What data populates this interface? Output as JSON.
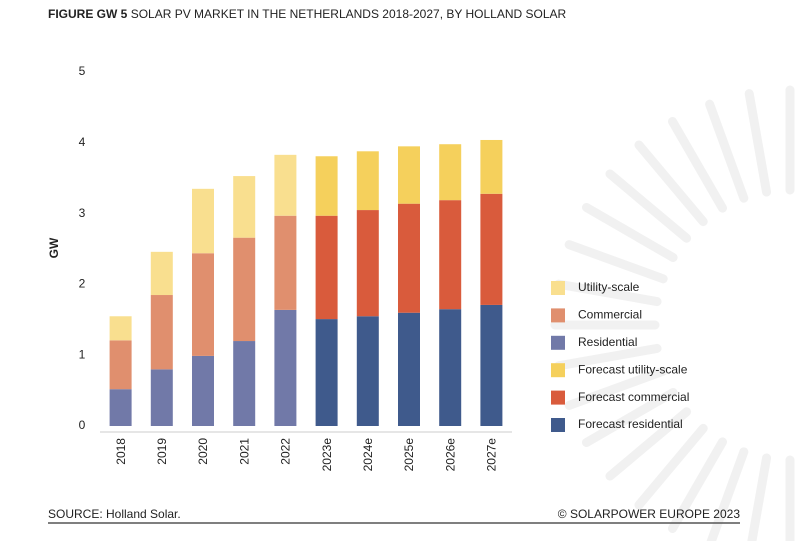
{
  "chart_data": {
    "type": "stacked_bar",
    "figure_label": "FIGURE GW 5",
    "title": "SOLAR PV MARKET IN THE NETHERLANDS 2018-2027, BY HOLLAND SOLAR",
    "y_label": "GW",
    "source": "SOURCE: Holland Solar.",
    "copyright": "© SOLARPOWER EUROPE 2023",
    "categories": [
      "2018",
      "2019",
      "2020",
      "2021",
      "2022",
      "2023e",
      "2024e",
      "2025e",
      "2026e",
      "2027e"
    ],
    "series": [
      {
        "name": "Residential",
        "color": "#7179a8",
        "values": [
          0.52,
          0.8,
          0.99,
          1.2,
          1.64,
          null,
          null,
          null,
          null,
          null
        ]
      },
      {
        "name": "Commercial",
        "color": "#e08f6e",
        "values": [
          0.69,
          1.05,
          1.45,
          1.46,
          1.33,
          null,
          null,
          null,
          null,
          null
        ]
      },
      {
        "name": "Utility-scale",
        "color": "#f9df8f",
        "values": [
          0.34,
          0.61,
          0.91,
          0.87,
          0.86,
          null,
          null,
          null,
          null,
          null
        ]
      },
      {
        "name": "Forecast residential",
        "color": "#3f5a8c",
        "values": [
          null,
          null,
          null,
          null,
          null,
          1.51,
          1.55,
          1.6,
          1.65,
          1.71
        ]
      },
      {
        "name": "Forecast commercial",
        "color": "#d95b3c",
        "values": [
          null,
          null,
          null,
          null,
          null,
          1.46,
          1.5,
          1.54,
          1.54,
          1.57
        ]
      },
      {
        "name": "Forecast utility-scale",
        "color": "#f5d05c",
        "values": [
          null,
          null,
          null,
          null,
          null,
          0.84,
          0.83,
          0.81,
          0.79,
          0.76
        ]
      }
    ],
    "ylim": [
      0,
      5
    ],
    "yticks": [
      0,
      1,
      2,
      3,
      4,
      5
    ],
    "grid": false
  }
}
